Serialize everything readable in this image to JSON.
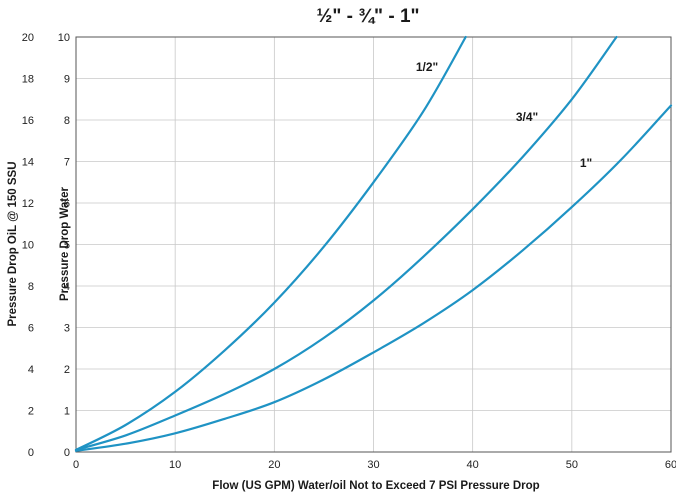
{
  "chart_data": {
    "type": "line",
    "title": "½\" - ¾\" - 1\"",
    "xlabel": "Flow (US GPM) Water/oil Not to Exceed 7 PSI Pressure Drop",
    "ylabel_outer": "Pressure Drop OiL @ 150 SSU",
    "ylabel_inner": "Pressure Drop Water",
    "xlim": [
      0,
      60
    ],
    "ylim_water": [
      0,
      10
    ],
    "ylim_oil": [
      0,
      20
    ],
    "x_ticks": [
      "0",
      "10",
      "20",
      "30",
      "40",
      "50",
      "60"
    ],
    "y_water_ticks": [
      "0",
      "1",
      "2",
      "3",
      "4",
      "5",
      "6",
      "7",
      "8",
      "9",
      "10"
    ],
    "y_oil_ticks": [
      "0",
      "2",
      "4",
      "6",
      "8",
      "10",
      "12",
      "14",
      "16",
      "18",
      "20"
    ],
    "grid": true,
    "line_color": "#1f93c4",
    "series": [
      {
        "name": "1/2\"",
        "x": [
          0,
          5,
          10,
          15,
          20,
          25,
          30,
          35,
          39.3
        ],
        "y": [
          0.05,
          0.65,
          1.45,
          2.45,
          3.6,
          4.95,
          6.5,
          8.2,
          10.0
        ]
      },
      {
        "name": "3/4\"",
        "x": [
          0,
          5,
          10,
          15,
          20,
          25,
          30,
          35,
          40,
          45,
          50,
          54.5
        ],
        "y": [
          0.05,
          0.4,
          0.88,
          1.4,
          2.0,
          2.75,
          3.65,
          4.7,
          5.85,
          7.1,
          8.5,
          10.0
        ]
      },
      {
        "name": "1\"",
        "x": [
          0,
          5,
          10,
          15,
          20,
          25,
          30,
          35,
          40,
          45,
          50,
          55,
          60
        ],
        "y": [
          0.03,
          0.2,
          0.45,
          0.8,
          1.2,
          1.75,
          2.4,
          3.1,
          3.9,
          4.85,
          5.9,
          7.05,
          8.35
        ]
      }
    ]
  }
}
